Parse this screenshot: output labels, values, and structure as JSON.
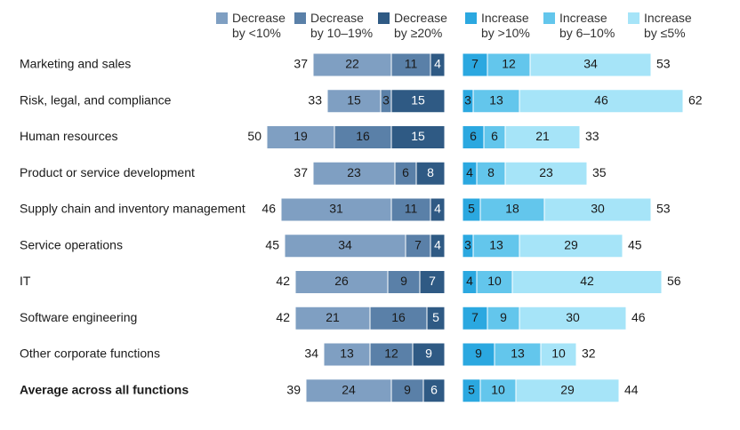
{
  "chart_data": {
    "type": "diverging-bar",
    "categories": [
      "Marketing and sales",
      "Risk, legal, and compliance",
      "Human resources",
      "Product or service development",
      "Supply chain and inventory management",
      "Service operations",
      "IT",
      "Software engineering",
      "Other corporate functions",
      "Average across all functions"
    ],
    "series": [
      {
        "name": "Decrease by <10%",
        "color": "#7f9fc2",
        "side": "left",
        "values": [
          22,
          15,
          19,
          23,
          31,
          34,
          26,
          21,
          13,
          24
        ]
      },
      {
        "name": "Decrease by 10–19%",
        "color": "#5a80a8",
        "side": "left",
        "values": [
          11,
          3,
          16,
          6,
          11,
          7,
          9,
          16,
          12,
          9
        ]
      },
      {
        "name": "Decrease by ≥20%",
        "color": "#2f5a84",
        "side": "left",
        "values": [
          4,
          15,
          15,
          8,
          4,
          4,
          7,
          5,
          9,
          6
        ]
      },
      {
        "name": "Increase by >10%",
        "color": "#2ba8e0",
        "side": "right",
        "values": [
          7,
          3,
          6,
          4,
          5,
          3,
          4,
          7,
          9,
          5
        ]
      },
      {
        "name": "Increase by 6–10%",
        "color": "#63c6ec",
        "side": "right",
        "values": [
          12,
          13,
          6,
          8,
          18,
          13,
          10,
          9,
          13,
          10
        ]
      },
      {
        "name": "Increase by ≤5%",
        "color": "#a6e4f8",
        "side": "right",
        "values": [
          34,
          46,
          21,
          23,
          30,
          29,
          42,
          30,
          10,
          29
        ]
      }
    ],
    "left_totals": [
      37,
      33,
      50,
      37,
      46,
      45,
      42,
      42,
      34,
      39
    ],
    "right_totals": [
      53,
      62,
      33,
      35,
      53,
      45,
      56,
      46,
      32,
      44
    ]
  }
}
